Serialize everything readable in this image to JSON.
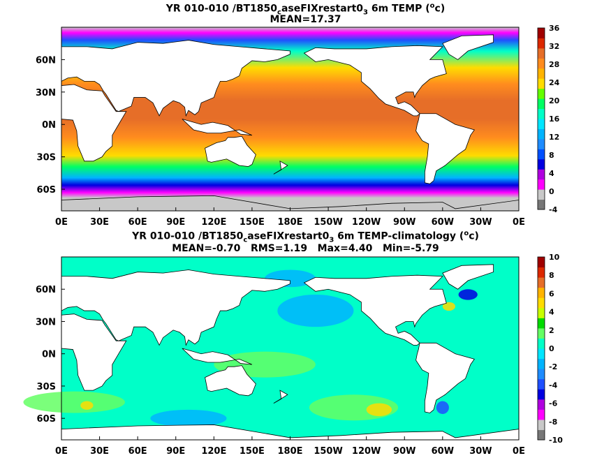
{
  "chart_data": [
    {
      "type": "heatmap",
      "title_pre": "YR 010-010 /BT1850",
      "title_sub1": "c",
      "title_mid": "aseFIXrestart0",
      "title_sub2": "3",
      "title_post": " 6m TEMP (",
      "title_sup": "o",
      "title_end": "c)",
      "stats": "MEAN=17.37",
      "x_ticks": [
        "0E",
        "30E",
        "60E",
        "90E",
        "120E",
        "150E",
        "180E",
        "150W",
        "120W",
        "90W",
        "60W",
        "30W",
        "0E"
      ],
      "y_ticks": [
        "60N",
        "30N",
        "0N",
        "30S",
        "60S"
      ],
      "colorbar_ticks": [
        "36",
        "32",
        "28",
        "24",
        "20",
        "16",
        "12",
        "8",
        "4",
        "0",
        "-4"
      ],
      "colorbar_range": [
        -4,
        36
      ],
      "colorbar_colors": [
        "#777777",
        "#c8c8c8",
        "#ff00ff",
        "#b000e0",
        "#0000e0",
        "#0050ff",
        "#1e8cff",
        "#00b4ff",
        "#00e6ff",
        "#00ffc8",
        "#00ff64",
        "#64ff00",
        "#ffdc00",
        "#ffb400",
        "#ff8c1e",
        "#e66e28",
        "#dc2800",
        "#a00000"
      ],
      "land_color": "#ffffff",
      "ice_color": "#c8c8c8"
    },
    {
      "type": "heatmap",
      "title_pre": "YR 010-010 /BT1850",
      "title_sub1": "c",
      "title_mid": "aseFIXrestart0",
      "title_sub2": "3",
      "title_post": " 6m TEMP-climatology (",
      "title_sup": "o",
      "title_end": "c)",
      "stats": "MEAN=-0.70   RMS=1.19   Max=4.40   Min=-5.79",
      "x_ticks": [
        "0E",
        "30E",
        "60E",
        "90E",
        "120E",
        "150E",
        "180E",
        "150W",
        "120W",
        "90W",
        "60W",
        "30W",
        "0E"
      ],
      "y_ticks": [
        "60N",
        "30N",
        "0N",
        "30S",
        "60S"
      ],
      "colorbar_ticks": [
        "10",
        "8",
        "6",
        "4",
        "2",
        "0",
        "-2",
        "-4",
        "-6",
        "-8",
        "-10"
      ],
      "colorbar_range": [
        -10,
        10
      ],
      "colorbar_colors": [
        "#777777",
        "#c8c8c8",
        "#ff00ff",
        "#b000e0",
        "#0000e0",
        "#1e50ff",
        "#1e8cff",
        "#00b4ff",
        "#00e6ff",
        "#00ffc8",
        "#64ff64",
        "#00dc00",
        "#c8ff00",
        "#ffdc00",
        "#ffb400",
        "#e66e28",
        "#dc2800",
        "#a00000"
      ],
      "land_color": "#ffffff"
    }
  ]
}
